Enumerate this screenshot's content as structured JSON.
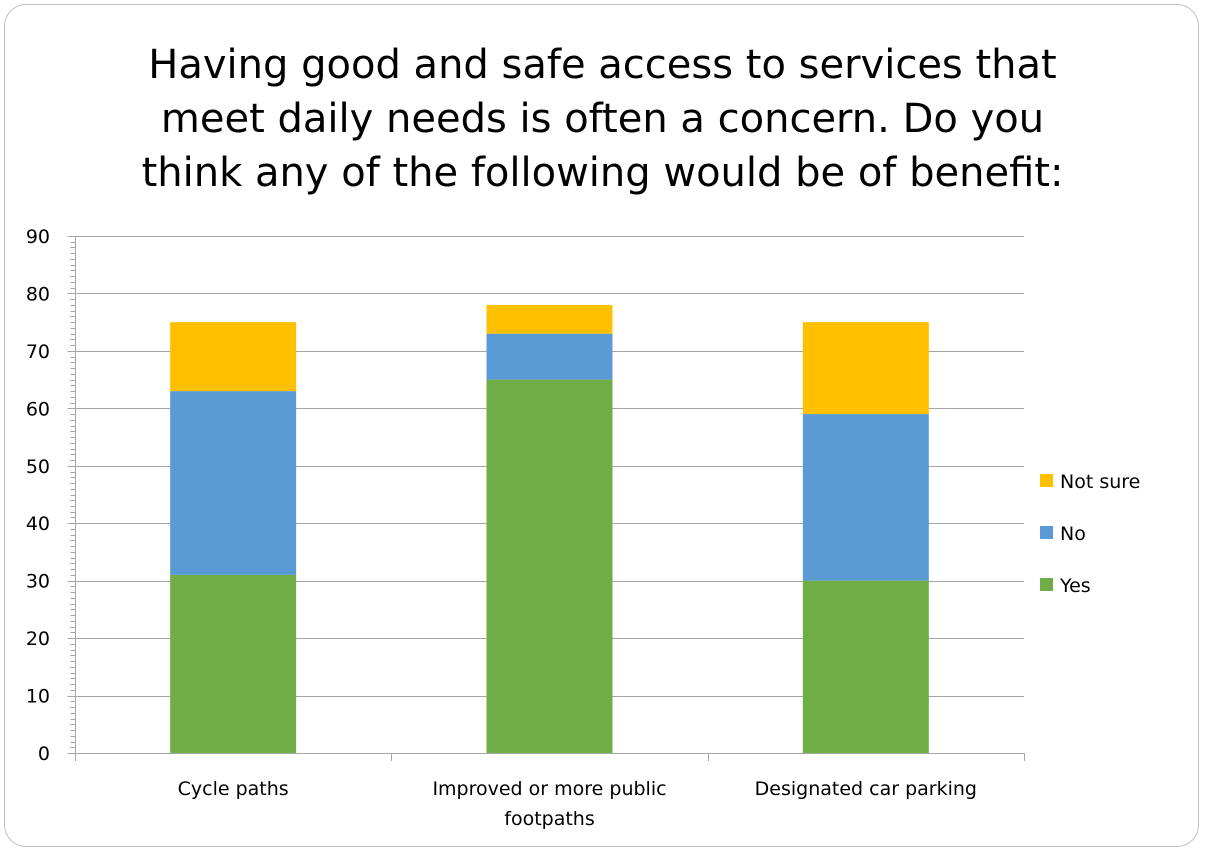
{
  "chart_data": {
    "type": "bar",
    "stacked": true,
    "title": "Having good and safe access to services that meet daily needs is often a concern. Do you think any of the following would be of benefit:",
    "title_lines": [
      "Having good and safe access to services that",
      "meet daily needs is often a concern. Do you",
      "think any of the following would be of benefit:"
    ],
    "categories": [
      [
        "Cycle paths"
      ],
      [
        "Improved or more public",
        "footpaths"
      ],
      [
        "Designated car parking"
      ]
    ],
    "series": [
      {
        "name": "Yes",
        "color": "#70ad47",
        "values": [
          31,
          65,
          30
        ]
      },
      {
        "name": "No",
        "color": "#5b9bd5",
        "values": [
          32,
          8,
          29
        ]
      },
      {
        "name": "Not sure",
        "color": "#ffc000",
        "values": [
          12,
          5,
          16
        ]
      }
    ],
    "ylim": [
      0,
      90
    ],
    "yticks": [
      0,
      10,
      20,
      30,
      40,
      50,
      60,
      70,
      80,
      90
    ],
    "grid": true,
    "legend_position": "right",
    "legend_order": [
      "Not sure",
      "No",
      "Yes"
    ]
  }
}
